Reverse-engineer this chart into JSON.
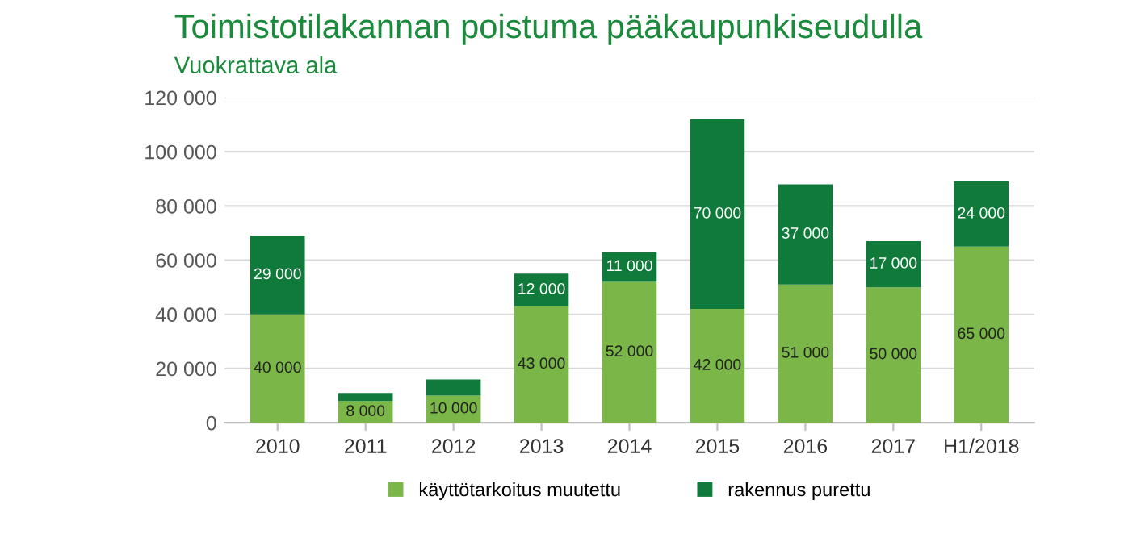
{
  "chart_data": {
    "type": "bar",
    "stacked": true,
    "title": "Toimistotilakannan poistuma pääkaupunkiseudulla",
    "subtitle": "Vuokrattava ala",
    "categories": [
      "2010",
      "2011",
      "2012",
      "2013",
      "2014",
      "2015",
      "2016",
      "2017",
      "H1/2018"
    ],
    "series": [
      {
        "name": "käyttötarkoitus muutettu",
        "color": "#7ab648",
        "values": [
          40000,
          8000,
          10000,
          43000,
          52000,
          42000,
          51000,
          50000,
          65000
        ],
        "value_labels": [
          "40 000",
          "8 000",
          "10 000",
          "43 000",
          "52 000",
          "42 000",
          "51 000",
          "50 000",
          "65 000"
        ]
      },
      {
        "name": "rakennus purettu",
        "color": "#0f7a3a",
        "values": [
          29000,
          3000,
          6000,
          12000,
          11000,
          70000,
          37000,
          17000,
          24000
        ],
        "value_labels": [
          "29 000",
          null,
          null,
          "12 000",
          "11 000",
          "70 000",
          "37 000",
          "17 000",
          "24 000"
        ]
      }
    ],
    "ylim": [
      0,
      120000
    ],
    "yticks": [
      {
        "value": 0,
        "label": "0"
      },
      {
        "value": 20000,
        "label": "20 000"
      },
      {
        "value": 40000,
        "label": "40 000"
      },
      {
        "value": 60000,
        "label": "60 000"
      },
      {
        "value": 80000,
        "label": "80 000"
      },
      {
        "value": 100000,
        "label": "100 000"
      },
      {
        "value": 120000,
        "label": "120 000"
      }
    ],
    "grid": "y",
    "legend": "bottom"
  }
}
